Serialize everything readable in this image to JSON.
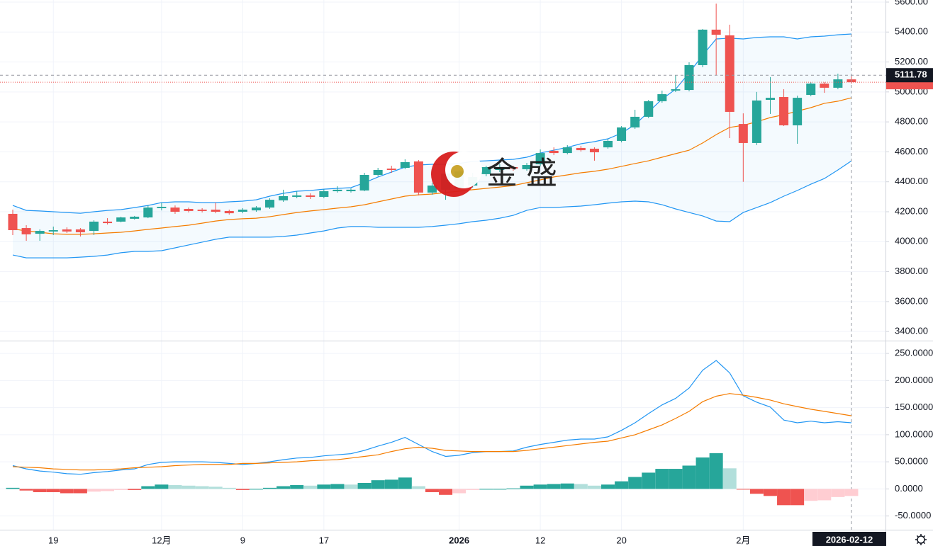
{
  "watermark": "金盛",
  "chart_data": [
    {
      "type": "candlestick",
      "categories": [
        null,
        null,
        null,
        "19",
        null,
        null,
        null,
        null,
        null,
        null,
        null,
        "12月",
        null,
        null,
        null,
        null,
        null,
        "9",
        null,
        null,
        null,
        null,
        null,
        "17",
        null,
        null,
        null,
        null,
        null,
        null,
        null,
        null,
        null,
        "2026",
        null,
        null,
        null,
        null,
        null,
        "12",
        null,
        null,
        null,
        null,
        null,
        "20",
        null,
        null,
        null,
        null,
        null,
        null,
        null,
        null,
        "2月",
        null,
        null,
        null,
        null,
        null,
        null,
        null,
        null
      ],
      "open": [
        4186,
        4091,
        4053,
        4068,
        4082,
        4082,
        4072,
        4134,
        4134,
        4153,
        4162,
        4224,
        4228,
        4219,
        4214,
        4214,
        4205,
        4200,
        4209,
        4228,
        4276,
        4299,
        4309,
        4299,
        4337,
        4337,
        4342,
        4446,
        4488,
        4493,
        4536,
        4328,
        4347,
        4356,
        4375,
        4451,
        4479,
        4498,
        4484,
        4517,
        4607,
        4592,
        4626,
        4621,
        4630,
        4673,
        4763,
        4834,
        4938,
        5009,
        5013,
        5179,
        5416,
        5378,
        4786,
        4659,
        4947,
        4966,
        4777,
        4980,
        5056,
        5028,
        5084
      ],
      "high": [
        4214,
        4110,
        4082,
        4101,
        4096,
        4091,
        4143,
        4157,
        4167,
        4172,
        4242,
        4261,
        4242,
        4228,
        4224,
        4261,
        4214,
        4224,
        4238,
        4290,
        4347,
        4337,
        4323,
        4351,
        4370,
        4356,
        4460,
        4493,
        4507,
        4550,
        4545,
        4394,
        4470,
        4479,
        4460,
        4507,
        4517,
        4507,
        4526,
        4616,
        4630,
        4645,
        4640,
        4630,
        4687,
        4772,
        4881,
        4947,
        5009,
        5113,
        5198,
        5420,
        5590,
        5449,
        4857,
        5000,
        5099,
        5018,
        4975,
        5065,
        5065,
        5122,
        5113
      ],
      "low": [
        4044,
        4006,
        4006,
        4044,
        4058,
        4035,
        4044,
        4115,
        4129,
        4148,
        4157,
        4209,
        4186,
        4195,
        4195,
        4190,
        4181,
        4190,
        4200,
        4219,
        4266,
        4290,
        4285,
        4290,
        4328,
        4328,
        4337,
        4437,
        4460,
        4484,
        4309,
        4313,
        4280,
        4342,
        4361,
        4437,
        4465,
        4474,
        4474,
        4503,
        4578,
        4583,
        4602,
        4541,
        4621,
        4663,
        4753,
        4825,
        4928,
        4999,
        5004,
        5165,
        5113,
        4692,
        4400,
        4645,
        4853,
        4772,
        4654,
        4971,
        4994,
        5018,
        5056
      ],
      "close": [
        4077,
        4049,
        4072,
        4077,
        4068,
        4063,
        4134,
        4124,
        4162,
        4167,
        4228,
        4233,
        4200,
        4205,
        4205,
        4200,
        4190,
        4214,
        4228,
        4280,
        4304,
        4309,
        4299,
        4337,
        4347,
        4347,
        4446,
        4479,
        4479,
        4531,
        4328,
        4375,
        4455,
        4469,
        4432,
        4498,
        4498,
        4488,
        4512,
        4592,
        4592,
        4630,
        4611,
        4597,
        4673,
        4763,
        4834,
        4938,
        4985,
        5018,
        5179,
        5416,
        5382,
        4867,
        4659,
        4943,
        4961,
        4777,
        4961,
        5056,
        5028,
        5084,
        5065
      ],
      "up_color": "#26a69a",
      "down_color": "#ef5350",
      "series": [
        {
          "color": "#2196f3",
          "values": [
            4242,
            4209,
            4205,
            4200,
            4195,
            4190,
            4200,
            4209,
            4214,
            4228,
            4242,
            4261,
            4266,
            4266,
            4261,
            4261,
            4266,
            4271,
            4280,
            4304,
            4323,
            4337,
            4342,
            4351,
            4356,
            4361,
            4394,
            4432,
            4465,
            4498,
            4512,
            4517,
            4517,
            4522,
            4536,
            4540,
            4545,
            4550,
            4564,
            4592,
            4611,
            4630,
            4654,
            4668,
            4687,
            4725,
            4782,
            4867,
            4952,
            5018,
            5127,
            5245,
            5354,
            5359,
            5354,
            5364,
            5368,
            5368,
            5354,
            5368,
            5373,
            5382,
            5387
          ]
        },
        {
          "color": "#f57c00",
          "values": [
            4086,
            4072,
            4063,
            4053,
            4049,
            4049,
            4053,
            4058,
            4063,
            4072,
            4082,
            4091,
            4101,
            4110,
            4124,
            4138,
            4148,
            4153,
            4157,
            4167,
            4181,
            4195,
            4205,
            4214,
            4224,
            4233,
            4247,
            4266,
            4285,
            4304,
            4313,
            4318,
            4328,
            4337,
            4347,
            4356,
            4365,
            4375,
            4394,
            4413,
            4432,
            4446,
            4460,
            4470,
            4484,
            4503,
            4522,
            4540,
            4564,
            4588,
            4611,
            4659,
            4715,
            4763,
            4777,
            4801,
            4829,
            4848,
            4872,
            4895,
            4924,
            4938,
            4961
          ]
        },
        {
          "color": "#2196f3",
          "values": [
            3911,
            3892,
            3892,
            3892,
            3892,
            3897,
            3902,
            3911,
            3926,
            3935,
            3935,
            3940,
            3959,
            3978,
            3997,
            4016,
            4030,
            4030,
            4030,
            4030,
            4035,
            4044,
            4058,
            4072,
            4091,
            4101,
            4101,
            4096,
            4096,
            4096,
            4096,
            4101,
            4110,
            4120,
            4134,
            4143,
            4157,
            4176,
            4209,
            4228,
            4228,
            4233,
            4238,
            4247,
            4257,
            4266,
            4271,
            4266,
            4247,
            4219,
            4195,
            4172,
            4138,
            4134,
            4195,
            4228,
            4261,
            4304,
            4342,
            4384,
            4422,
            4479,
            4540
          ]
        }
      ],
      "band_fill": "#2196f3",
      "ylim": [
        3344,
        5614
      ],
      "yticks": [
        {
          "value": 5600,
          "label": "5600.00"
        },
        {
          "value": 5400,
          "label": "5400.00"
        },
        {
          "value": 5200,
          "label": "5200.00"
        },
        {
          "value": 5000,
          "label": "5000.00"
        },
        {
          "value": 4800,
          "label": "4800.00"
        },
        {
          "value": 4600,
          "label": "4600.00"
        },
        {
          "value": 4400,
          "label": "4400.00"
        },
        {
          "value": 4200,
          "label": "4200.00"
        },
        {
          "value": 4000,
          "label": "4000.00"
        },
        {
          "value": 3800,
          "label": "3800.00"
        },
        {
          "value": 3600,
          "label": "3600.00"
        },
        {
          "value": 3400,
          "label": "3400.00"
        }
      ],
      "grid": true,
      "crosshair": {
        "date": "2026-02-12",
        "price": 5111.78
      }
    },
    {
      "type": "macd",
      "series": [
        {
          "color": "#2196f3",
          "values": [
            43,
            37,
            33,
            31,
            28,
            27,
            30,
            32,
            35,
            37,
            45,
            49,
            50,
            50,
            50,
            49,
            47,
            45,
            47,
            50,
            54,
            57,
            58,
            61,
            63,
            65,
            71,
            79,
            86,
            95,
            82,
            69,
            60,
            62,
            67,
            69,
            69,
            70,
            77,
            82,
            86,
            90,
            92,
            92,
            96,
            108,
            122,
            139,
            155,
            167,
            186,
            219,
            237,
            214,
            172,
            160,
            151,
            127,
            122,
            125,
            122,
            124,
            122
          ]
        },
        {
          "color": "#f57c00",
          "values": [
            41,
            40,
            39,
            37,
            36,
            35,
            35,
            36,
            37,
            39,
            40,
            41,
            43,
            44,
            45,
            45,
            45,
            47,
            47,
            48,
            49,
            50,
            52,
            53,
            54,
            57,
            60,
            63,
            69,
            74,
            77,
            75,
            71,
            70,
            69,
            69,
            69,
            69,
            71,
            74,
            77,
            80,
            83,
            86,
            88,
            94,
            100,
            109,
            118,
            130,
            143,
            161,
            171,
            176,
            173,
            169,
            164,
            157,
            152,
            147,
            143,
            139,
            135
          ]
        }
      ],
      "histogram": {
        "values": [
          2,
          -3,
          -6,
          -6,
          -8,
          -8,
          -5,
          -4,
          -2,
          -2,
          5,
          8,
          7,
          6,
          5,
          4,
          2,
          -2,
          0,
          2,
          5,
          7,
          6,
          8,
          9,
          8,
          11,
          16,
          17,
          21,
          5,
          -6,
          -11,
          -8,
          -2,
          0,
          0,
          1,
          6,
          8,
          9,
          10,
          9,
          6,
          8,
          14,
          22,
          30,
          37,
          37,
          43,
          58,
          66,
          38,
          -1,
          -9,
          -13,
          -30,
          -30,
          -22,
          -21,
          -15,
          -13
        ],
        "colors": [
          "#26a69a",
          "#b2dfdb",
          "#ef5350",
          "#ffcdd2"
        ]
      },
      "ylim": [
        -75.3,
        272.3
      ],
      "yticks": [
        {
          "value": 250,
          "label": "250.0000"
        },
        {
          "value": 200,
          "label": "200.0000"
        },
        {
          "value": 150,
          "label": "150.0000"
        },
        {
          "value": 100,
          "label": "100.0000"
        },
        {
          "value": 50,
          "label": "50.0000"
        },
        {
          "value": 0,
          "label": "0.0000"
        },
        {
          "value": -50,
          "label": "-50.0000"
        }
      ],
      "grid": true
    }
  ]
}
